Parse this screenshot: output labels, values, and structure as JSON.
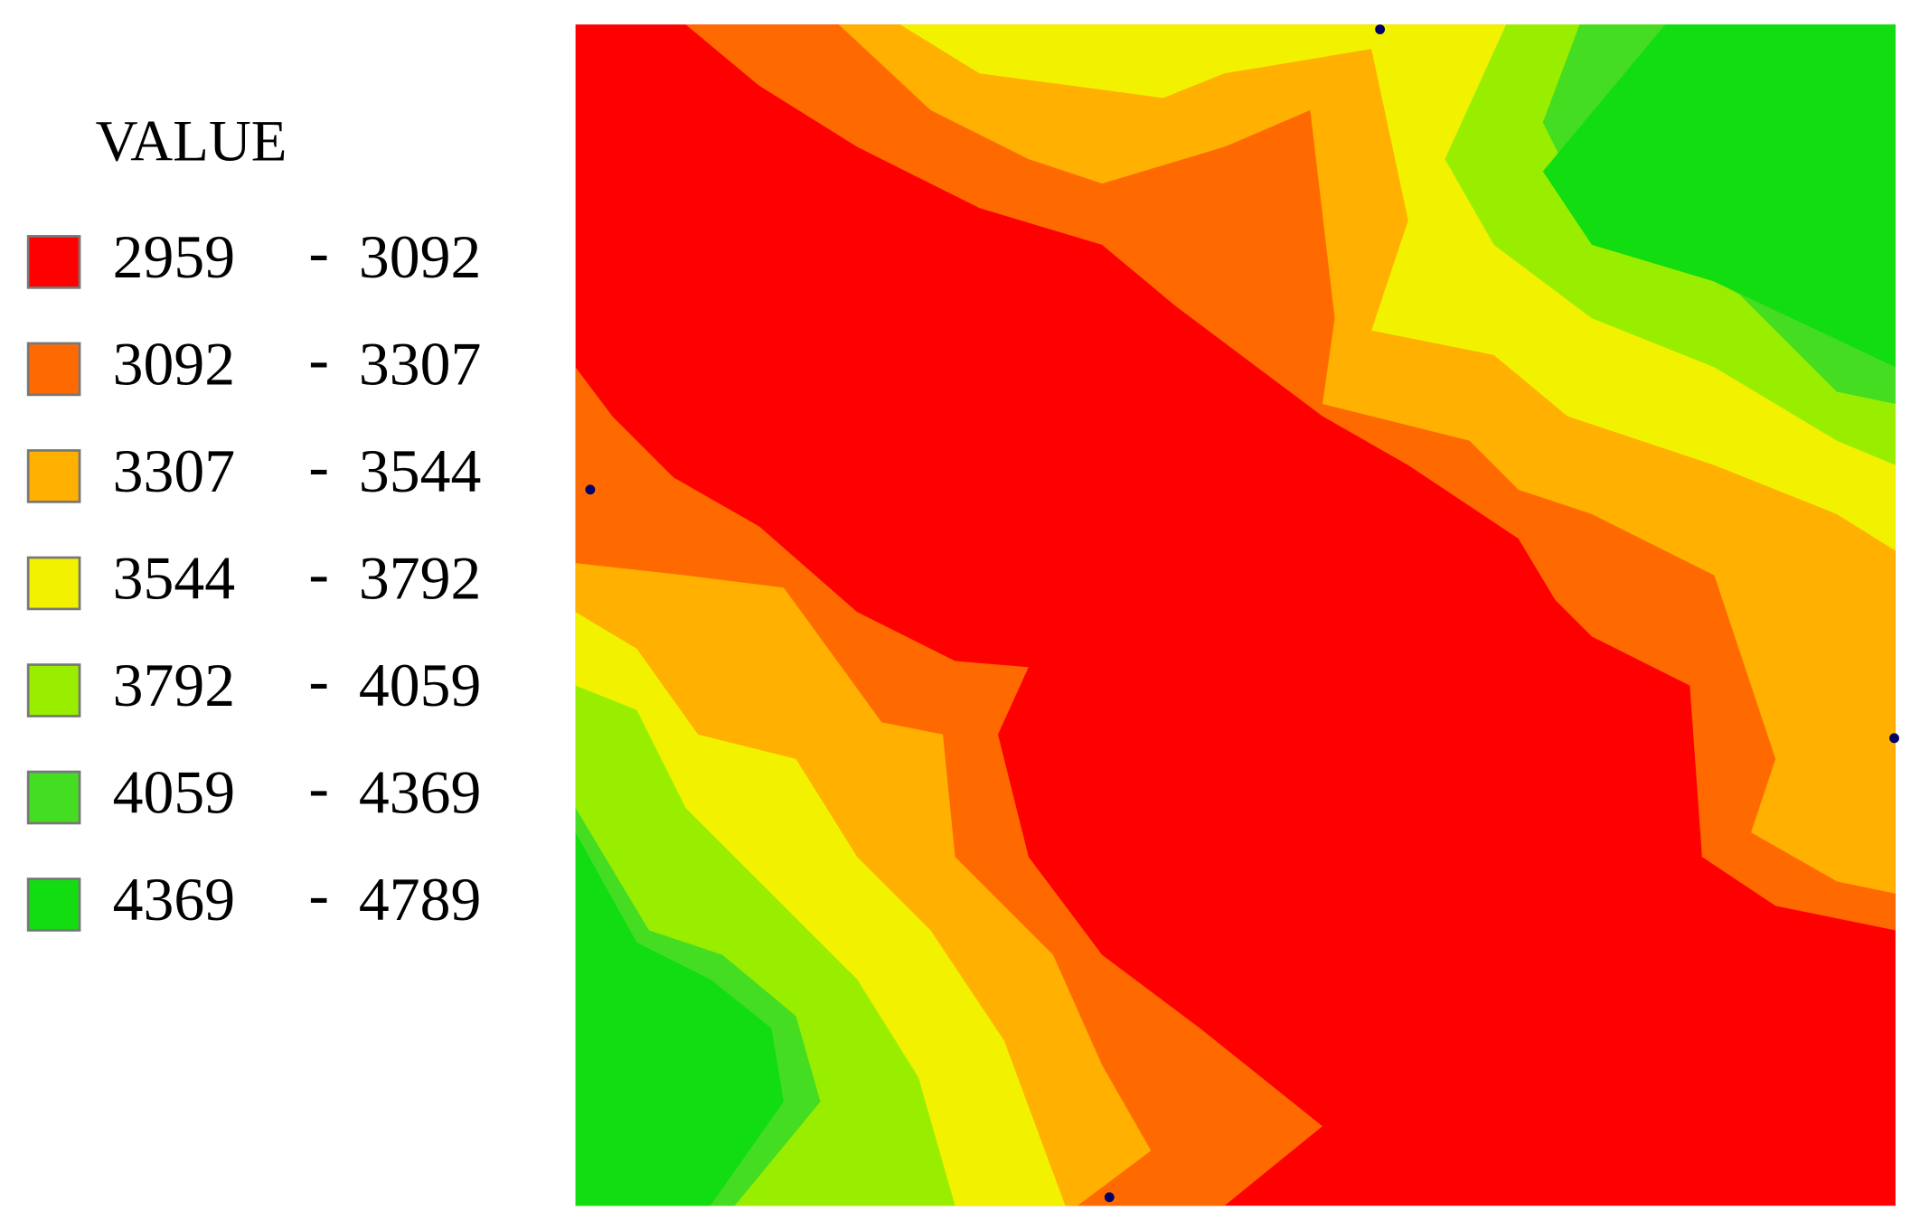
{
  "legend": {
    "title": "VALUE",
    "separator": "-",
    "items": [
      {
        "low": 2959,
        "high": 3092,
        "color": "#ff0000"
      },
      {
        "low": 3092,
        "high": 3307,
        "color": "#ff6a00"
      },
      {
        "low": 3307,
        "high": 3544,
        "color": "#ffb000"
      },
      {
        "low": 3544,
        "high": 3792,
        "color": "#f2f200"
      },
      {
        "low": 3792,
        "high": 4059,
        "color": "#99ee00"
      },
      {
        "low": 4059,
        "high": 4369,
        "color": "#44dd22"
      },
      {
        "low": 4369,
        "high": 4789,
        "color": "#11dd11"
      }
    ]
  }
}
